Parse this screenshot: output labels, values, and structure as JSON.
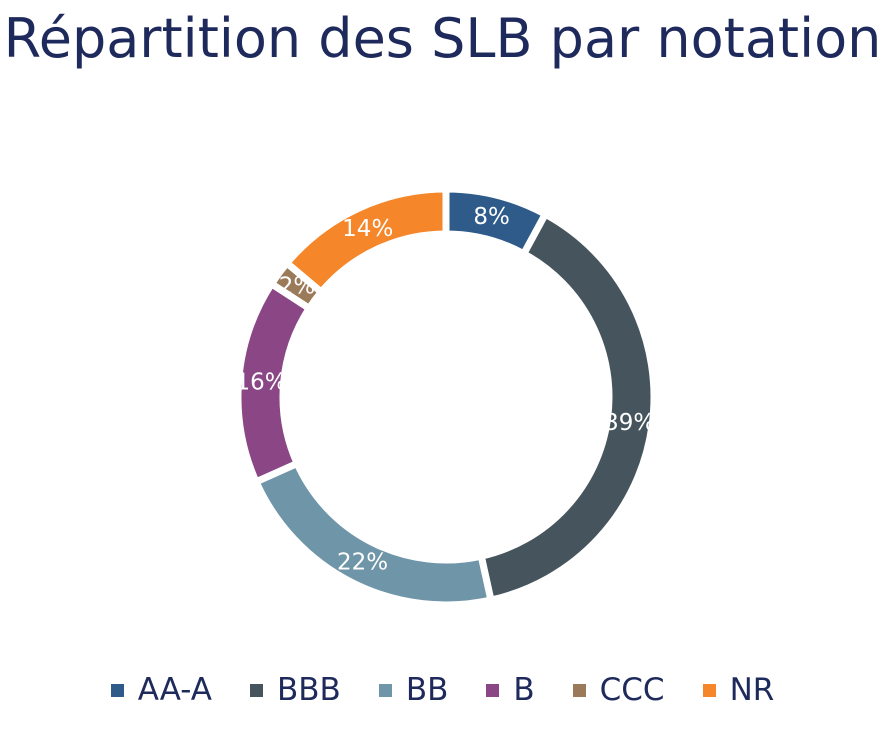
{
  "chart_data": {
    "type": "pie",
    "title": "Répartition des SLB par notation",
    "donut": true,
    "legend_position": "bottom",
    "categories": [
      "AA-A",
      "BBB",
      "BB",
      "B",
      "CCC",
      "NR"
    ],
    "values": [
      8,
      39,
      22,
      16,
      2,
      14
    ],
    "labels": [
      "8%",
      "39%",
      "22%",
      "16%",
      "2%",
      "14%"
    ],
    "colors": [
      "#2e5b8a",
      "#46555d",
      "#6f95a8",
      "#8b4685",
      "#9b7a5a",
      "#f5862a"
    ]
  }
}
